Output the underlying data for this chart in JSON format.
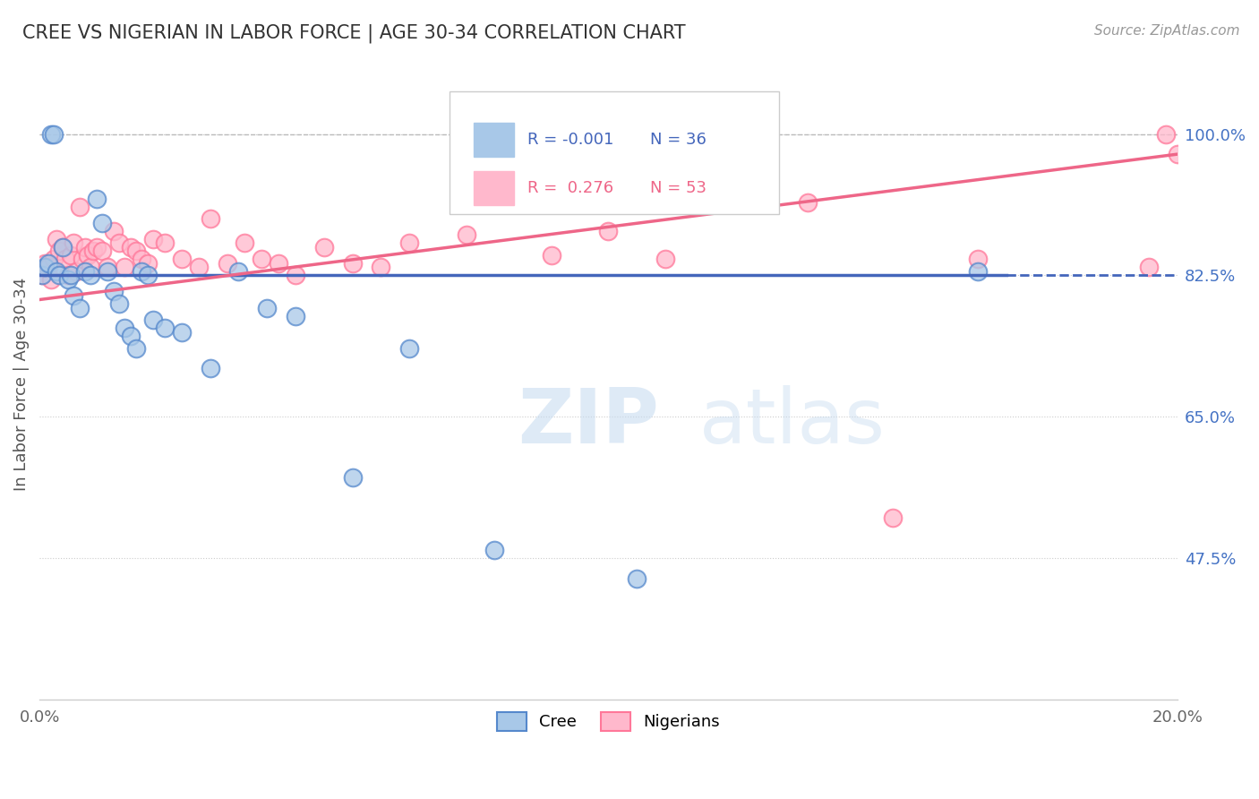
{
  "title": "CREE VS NIGERIAN IN LABOR FORCE | AGE 30-34 CORRELATION CHART",
  "source": "Source: ZipAtlas.com",
  "ylabel": "In Labor Force | Age 30-34",
  "xlim": [
    0.0,
    20.0
  ],
  "ylim": [
    30.0,
    108.0
  ],
  "ytick_values": [
    47.5,
    65.0,
    82.5,
    100.0
  ],
  "legend_R_cree": "-0.001",
  "legend_N_cree": "36",
  "legend_R_nigerian": "0.276",
  "legend_N_nigerian": "53",
  "color_cree_fill": "#A8C8E8",
  "color_cree_edge": "#5588CC",
  "color_nigerian_fill": "#FFB8CC",
  "color_nigerian_edge": "#FF7799",
  "color_cree_line": "#4466BB",
  "color_nigerian_line": "#EE6688",
  "background_color": "#FFFFFF",
  "cree_line_y": 82.5,
  "nigerian_line_x0": 0.0,
  "nigerian_line_y0": 79.5,
  "nigerian_line_x1": 20.0,
  "nigerian_line_y1": 97.5,
  "cree_x": [
    0.05,
    0.1,
    0.15,
    0.2,
    0.25,
    0.3,
    0.35,
    0.4,
    0.5,
    0.55,
    0.6,
    0.7,
    0.8,
    0.9,
    1.0,
    1.1,
    1.2,
    1.3,
    1.4,
    1.5,
    1.6,
    1.7,
    1.8,
    1.9,
    2.0,
    2.2,
    2.5,
    3.0,
    3.5,
    4.0,
    4.5,
    5.5,
    6.5,
    8.0,
    10.5,
    16.5
  ],
  "cree_y": [
    82.5,
    83.5,
    84.0,
    100.0,
    100.0,
    83.0,
    82.5,
    86.0,
    82.0,
    82.5,
    80.0,
    78.5,
    83.0,
    82.5,
    92.0,
    89.0,
    83.0,
    80.5,
    79.0,
    76.0,
    75.0,
    73.5,
    83.0,
    82.5,
    77.0,
    76.0,
    75.5,
    71.0,
    83.0,
    78.5,
    77.5,
    57.5,
    73.5,
    48.5,
    45.0,
    83.0
  ],
  "nigerian_x": [
    0.05,
    0.1,
    0.15,
    0.2,
    0.25,
    0.3,
    0.35,
    0.4,
    0.45,
    0.5,
    0.55,
    0.6,
    0.65,
    0.7,
    0.75,
    0.8,
    0.85,
    0.9,
    0.95,
    1.0,
    1.1,
    1.2,
    1.3,
    1.4,
    1.5,
    1.6,
    1.7,
    1.8,
    1.9,
    2.0,
    2.2,
    2.5,
    2.8,
    3.0,
    3.3,
    3.6,
    3.9,
    4.2,
    4.5,
    5.0,
    5.5,
    6.0,
    6.5,
    7.5,
    9.0,
    10.0,
    11.0,
    13.5,
    15.0,
    16.5,
    19.5,
    19.8,
    20.0
  ],
  "nigerian_y": [
    82.5,
    84.0,
    83.5,
    82.0,
    84.5,
    87.0,
    85.5,
    86.0,
    84.5,
    82.5,
    85.0,
    86.5,
    83.0,
    91.0,
    84.5,
    86.0,
    85.0,
    83.5,
    85.5,
    86.0,
    85.5,
    83.5,
    88.0,
    86.5,
    83.5,
    86.0,
    85.5,
    84.5,
    84.0,
    87.0,
    86.5,
    84.5,
    83.5,
    89.5,
    84.0,
    86.5,
    84.5,
    84.0,
    82.5,
    86.0,
    84.0,
    83.5,
    86.5,
    87.5,
    85.0,
    88.0,
    84.5,
    91.5,
    52.5,
    84.5,
    83.5,
    100.0,
    97.5
  ]
}
